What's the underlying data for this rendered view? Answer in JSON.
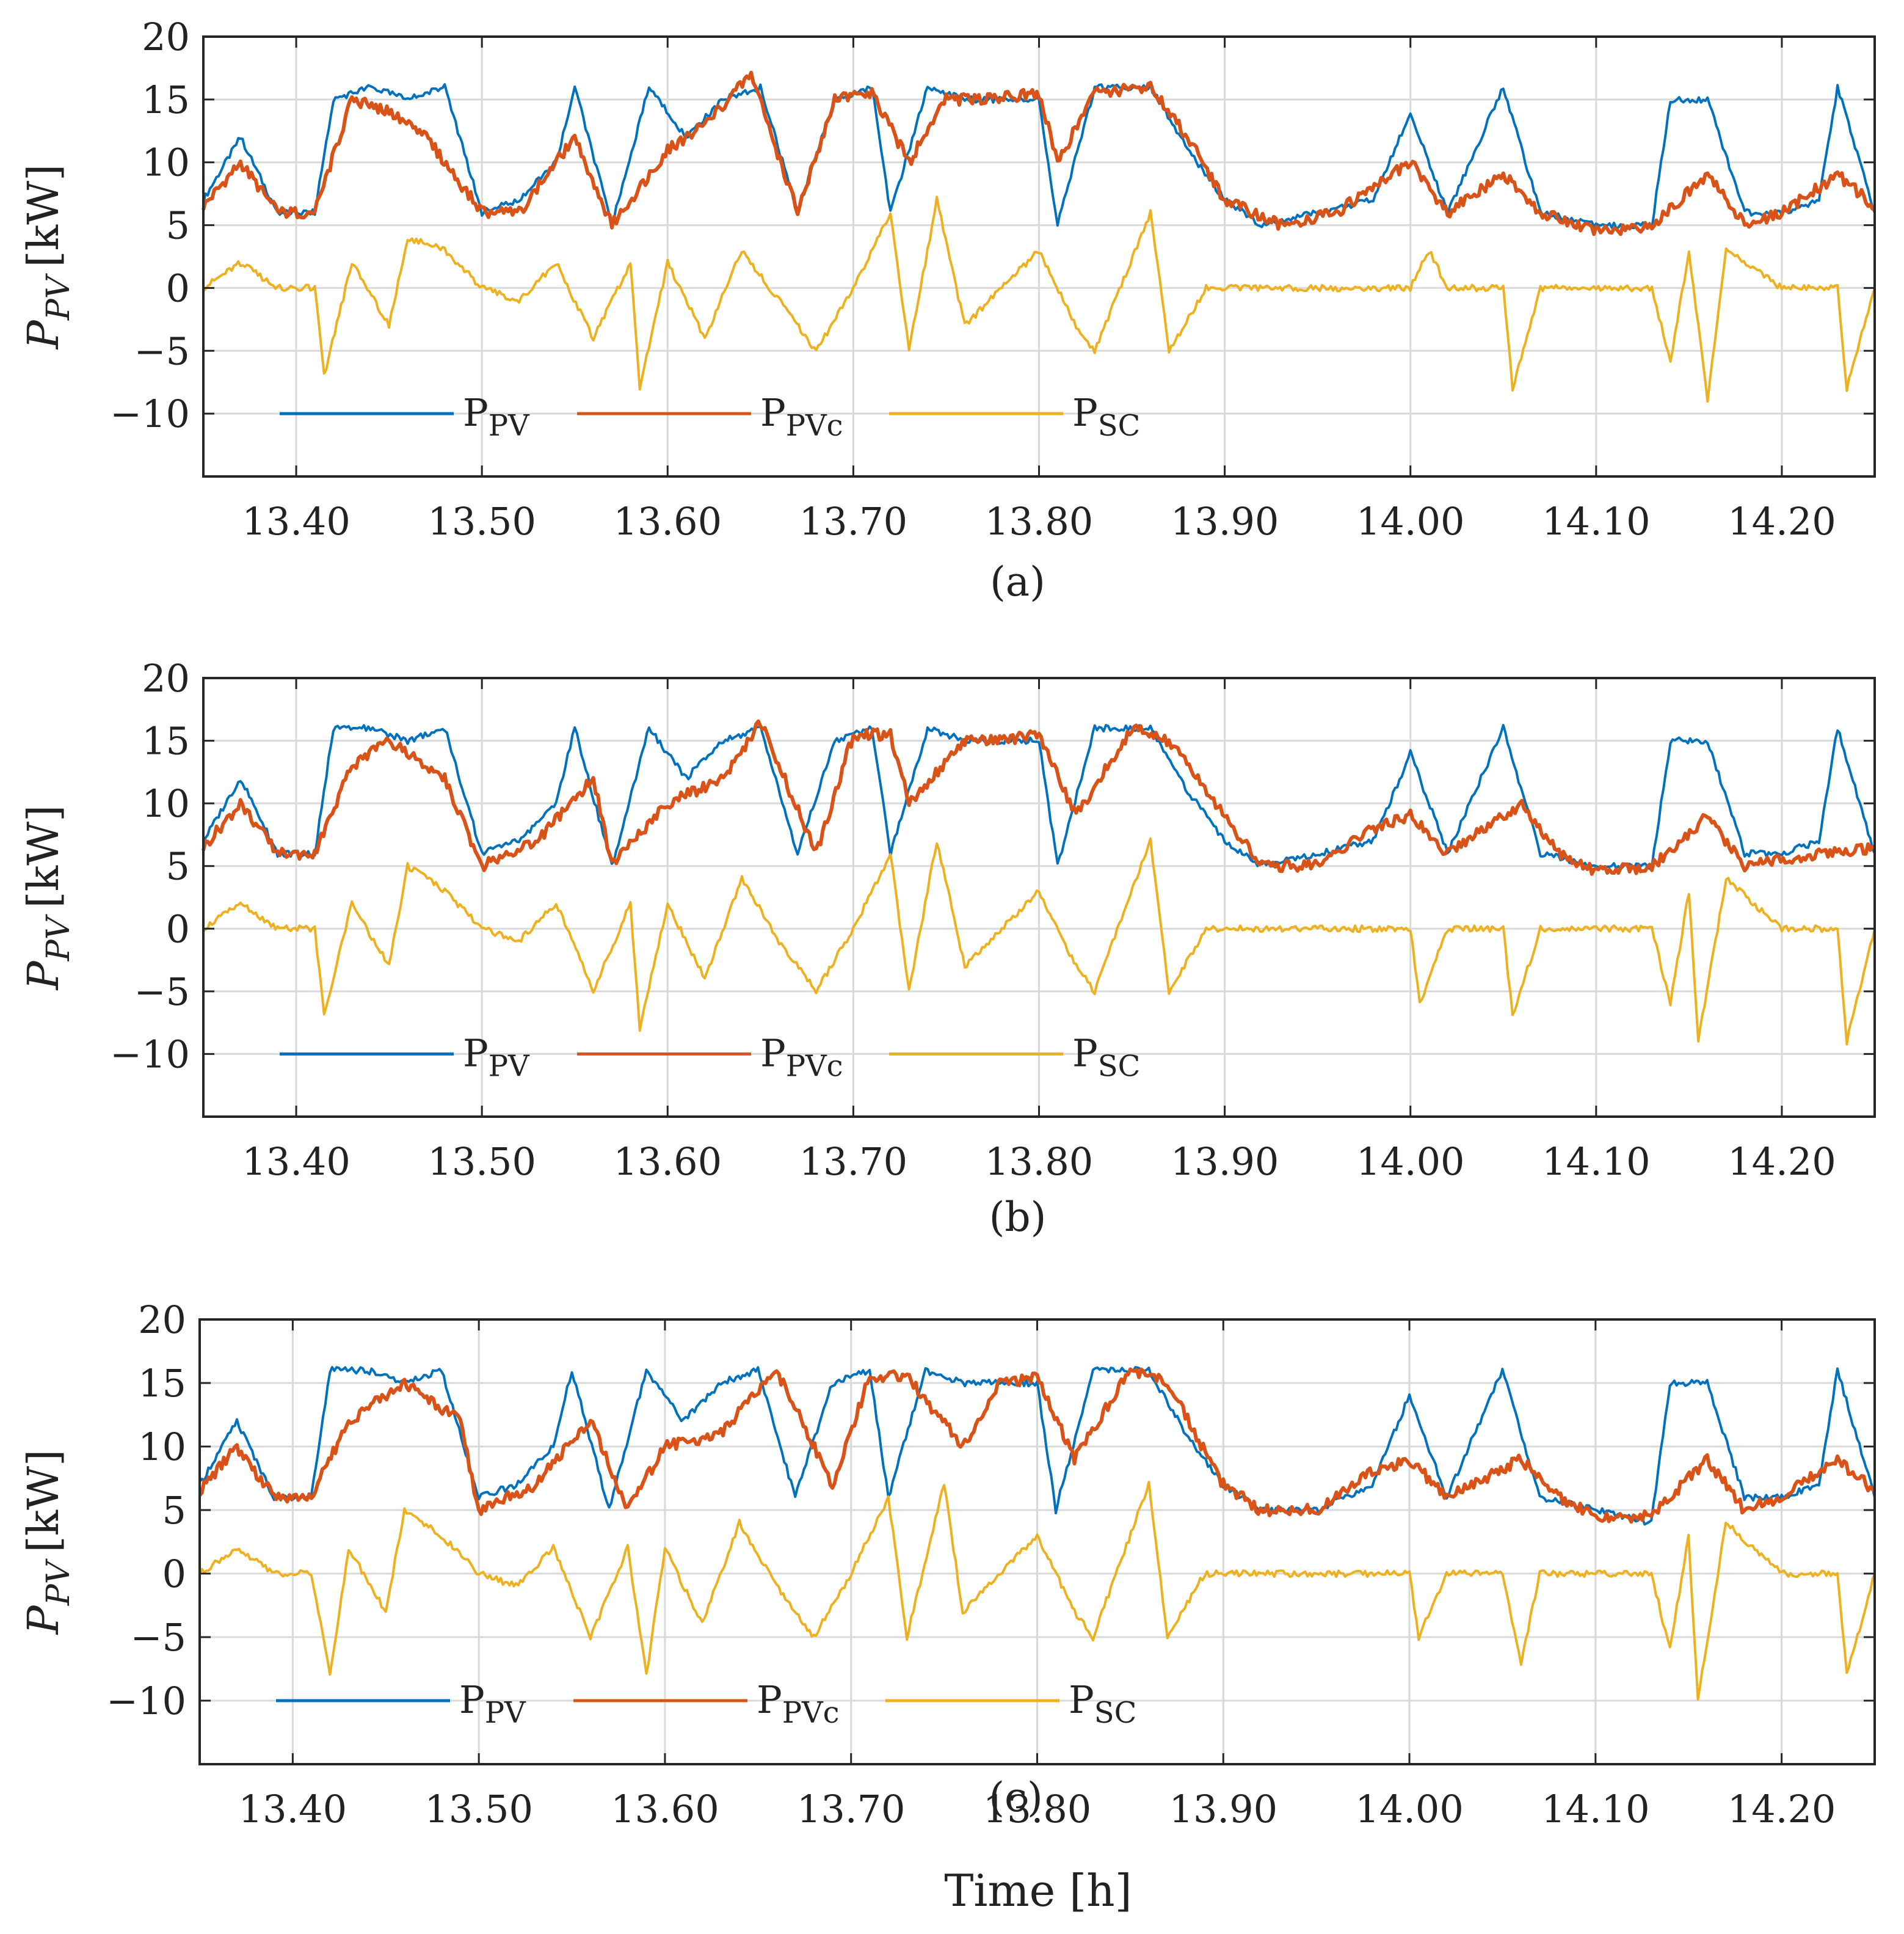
{
  "figure": {
    "xlabel": "Time [h]",
    "panel_captions": [
      "(a)",
      "(b)",
      "(c)"
    ]
  },
  "chart_data": [
    {
      "type": "line",
      "panel": "(a)",
      "ylabel": "P_PV [kW]",
      "ylabel_main": "P",
      "ylabel_sub": "PV",
      "ylabel_unit": "[kW]",
      "xlim": [
        13.35,
        14.25
      ],
      "ylim": [
        -15,
        20
      ],
      "xticks": [
        13.4,
        13.5,
        13.6,
        13.7,
        13.8,
        13.9,
        14.0,
        14.1,
        14.2
      ],
      "xtick_labels": [
        "13.40",
        "13.50",
        "13.60",
        "13.70",
        "13.80",
        "13.90",
        "14.00",
        "14.10",
        "14.20"
      ],
      "yticks": [
        20,
        15,
        10,
        5,
        0,
        -5,
        -10
      ],
      "ytick_labels": [
        "20",
        "15",
        "10",
        "5",
        "0",
        "−5",
        "−10"
      ],
      "grid": true,
      "legend_placement": "bottom-left, horizontal",
      "series": [
        {
          "name": "P_PV",
          "label_main": "P",
          "label_sub": "PV",
          "color": "#0072BD",
          "x": [
            13.35,
            13.37,
            13.39,
            13.41,
            13.42,
            13.44,
            13.46,
            13.48,
            13.5,
            13.52,
            13.54,
            13.55,
            13.57,
            13.59,
            13.61,
            13.63,
            13.65,
            13.67,
            13.69,
            13.71,
            13.72,
            13.74,
            13.76,
            13.78,
            13.8,
            13.81,
            13.83,
            13.86,
            13.88,
            13.9,
            13.92,
            13.95,
            13.98,
            14.0,
            14.02,
            14.05,
            14.07,
            14.1,
            14.13,
            14.14,
            14.16,
            14.18,
            14.2,
            14.22,
            14.23,
            14.25
          ],
          "y": [
            7,
            12,
            6,
            6,
            15,
            16,
            15,
            16,
            6,
            7,
            10,
            16,
            5,
            16,
            12,
            15,
            16,
            6,
            15,
            16,
            6,
            16,
            15,
            15,
            15,
            5,
            16,
            16,
            11,
            7,
            5,
            6,
            7,
            14,
            6,
            16,
            6,
            5,
            5,
            15,
            15,
            6,
            6,
            7,
            16,
            6
          ]
        },
        {
          "name": "P_PVc",
          "label_main": "P",
          "label_sub": "PVc",
          "color": "#D95319",
          "x": [
            13.35,
            13.37,
            13.39,
            13.41,
            13.43,
            13.45,
            13.47,
            13.5,
            13.52,
            13.55,
            13.57,
            13.6,
            13.62,
            13.645,
            13.67,
            13.69,
            13.71,
            13.73,
            13.75,
            13.77,
            13.8,
            13.81,
            13.83,
            13.86,
            13.88,
            13.9,
            13.93,
            13.96,
            14.0,
            14.02,
            14.05,
            14.07,
            14.1,
            14.13,
            14.16,
            14.18,
            14.2,
            14.23,
            14.25
          ],
          "y": [
            6.5,
            10,
            6,
            6,
            15,
            14,
            12,
            6,
            6,
            12,
            5,
            11,
            13,
            17,
            6,
            15,
            15.5,
            10,
            15,
            15,
            15.5,
            10,
            15.5,
            16,
            12,
            7,
            5,
            6,
            10,
            6,
            9,
            6,
            4.5,
            5,
            9,
            5,
            6,
            9,
            6.5
          ]
        },
        {
          "name": "P_SC",
          "label_main": "P",
          "label_sub": "SC",
          "color": "#EDB120",
          "x": [
            13.35,
            13.37,
            13.39,
            13.41,
            13.415,
            13.43,
            13.45,
            13.46,
            13.48,
            13.5,
            13.52,
            13.54,
            13.56,
            13.58,
            13.585,
            13.6,
            13.62,
            13.64,
            13.66,
            13.68,
            13.7,
            13.72,
            13.73,
            13.745,
            13.76,
            13.78,
            13.8,
            13.82,
            13.83,
            13.86,
            13.87,
            13.89,
            13.9,
            13.95,
            14.0,
            14.01,
            14.02,
            14.05,
            14.055,
            14.07,
            14.13,
            14.14,
            14.15,
            14.16,
            14.17,
            14.2,
            14.23,
            14.235,
            14.25
          ],
          "y": [
            0,
            2,
            0,
            0,
            -7,
            2,
            -3,
            4,
            3,
            0,
            -1,
            2,
            -4,
            2,
            -8,
            2,
            -4,
            3,
            -1,
            -5,
            0,
            6,
            -5,
            7,
            -3,
            0,
            3,
            -3,
            -5,
            6,
            -5,
            0,
            0,
            0,
            0,
            3,
            0,
            0,
            -8,
            0,
            0,
            -6,
            3,
            -9,
            3,
            0,
            0,
            -8,
            0
          ]
        }
      ]
    },
    {
      "type": "line",
      "panel": "(b)",
      "ylabel": "P_PV [kW]",
      "ylabel_main": "P",
      "ylabel_sub": "PV",
      "ylabel_unit": "[kW]",
      "xlim": [
        13.35,
        14.25
      ],
      "ylim": [
        -15,
        20
      ],
      "xticks": [
        13.4,
        13.5,
        13.6,
        13.7,
        13.8,
        13.9,
        14.0,
        14.1,
        14.2
      ],
      "xtick_labels": [
        "13.40",
        "13.50",
        "13.60",
        "13.70",
        "13.80",
        "13.90",
        "14.00",
        "14.10",
        "14.20"
      ],
      "yticks": [
        20,
        15,
        10,
        5,
        0,
        -5,
        -10
      ],
      "ytick_labels": [
        "20",
        "15",
        "10",
        "5",
        "0",
        "−5",
        "−10"
      ],
      "grid": true,
      "legend_placement": "bottom-left, horizontal",
      "series": [
        {
          "name": "P_PV",
          "label_main": "P",
          "label_sub": "PV",
          "color": "#0072BD",
          "x": [
            13.35,
            13.37,
            13.39,
            13.41,
            13.42,
            13.44,
            13.46,
            13.48,
            13.5,
            13.52,
            13.54,
            13.55,
            13.57,
            13.59,
            13.61,
            13.63,
            13.65,
            13.67,
            13.69,
            13.71,
            13.72,
            13.74,
            13.76,
            13.78,
            13.8,
            13.81,
            13.83,
            13.86,
            13.88,
            13.9,
            13.92,
            13.95,
            13.98,
            14.0,
            14.02,
            14.05,
            14.07,
            14.1,
            14.13,
            14.14,
            14.16,
            14.18,
            14.2,
            14.22,
            14.23,
            14.25
          ],
          "y": [
            7,
            12,
            6,
            6,
            16,
            16,
            15,
            16,
            6,
            7,
            10,
            16,
            5,
            16,
            12,
            15,
            16,
            6,
            15,
            16,
            6,
            16,
            15,
            15,
            15,
            5,
            16,
            16,
            11,
            7,
            5,
            6,
            7,
            14,
            6,
            16,
            6,
            5,
            5,
            15,
            15,
            6,
            6,
            7,
            16,
            6
          ]
        },
        {
          "name": "P_PVc",
          "label_main": "P",
          "label_sub": "PVc",
          "color": "#D95319",
          "x": [
            13.35,
            13.37,
            13.39,
            13.41,
            13.43,
            13.45,
            13.48,
            13.5,
            13.53,
            13.56,
            13.57,
            13.6,
            13.63,
            13.65,
            13.68,
            13.7,
            13.72,
            13.73,
            13.76,
            13.78,
            13.8,
            13.82,
            13.85,
            13.87,
            13.9,
            13.92,
            13.95,
            13.98,
            14.0,
            14.02,
            14.06,
            14.08,
            14.1,
            14.13,
            14.16,
            14.18,
            14.22,
            14.25
          ],
          "y": [
            6.5,
            10,
            6,
            6,
            13,
            15,
            12,
            5,
            7,
            12,
            5,
            10,
            12,
            16.5,
            6,
            15.5,
            15.5,
            10,
            15,
            15,
            15.5,
            9,
            16,
            15,
            9,
            5,
            5,
            8,
            9,
            6,
            10,
            6,
            4.5,
            5,
            9,
            5,
            6,
            6.5
          ]
        },
        {
          "name": "P_SC",
          "label_main": "P",
          "label_sub": "SC",
          "color": "#EDB120",
          "x": [
            13.35,
            13.37,
            13.39,
            13.41,
            13.415,
            13.43,
            13.45,
            13.46,
            13.48,
            13.5,
            13.52,
            13.54,
            13.56,
            13.58,
            13.585,
            13.6,
            13.62,
            13.64,
            13.66,
            13.68,
            13.7,
            13.72,
            13.73,
            13.745,
            13.76,
            13.78,
            13.8,
            13.82,
            13.83,
            13.86,
            13.87,
            13.89,
            13.9,
            13.95,
            14.0,
            14.005,
            14.02,
            14.05,
            14.055,
            14.07,
            14.13,
            14.14,
            14.15,
            14.155,
            14.17,
            14.2,
            14.23,
            14.235,
            14.25
          ],
          "y": [
            0,
            2,
            0,
            0,
            -7,
            2,
            -3,
            5,
            3,
            0,
            -1,
            2,
            -5,
            2,
            -8,
            2,
            -4,
            4,
            -1,
            -5,
            0,
            6,
            -5,
            7,
            -3,
            0,
            3,
            -3,
            -5,
            7,
            -5,
            0,
            0,
            0,
            0,
            -6,
            0,
            0,
            -7,
            0,
            0,
            -6,
            3,
            -9,
            4,
            0,
            0,
            -9,
            0
          ]
        }
      ]
    },
    {
      "type": "line",
      "panel": "(c)",
      "ylabel": "P_PV [kW]",
      "ylabel_main": "P",
      "ylabel_sub": "PV",
      "ylabel_unit": "[kW]",
      "xlim": [
        13.35,
        14.25
      ],
      "ylim": [
        -15,
        20
      ],
      "xticks": [
        13.4,
        13.5,
        13.6,
        13.7,
        13.8,
        13.9,
        14.0,
        14.1,
        14.2
      ],
      "xtick_labels": [
        "13.40",
        "13.50",
        "13.60",
        "13.70",
        "13.80",
        "13.90",
        "14.00",
        "14.10",
        "14.20"
      ],
      "yticks": [
        20,
        15,
        10,
        5,
        0,
        -5,
        -10
      ],
      "ytick_labels": [
        "20",
        "15",
        "10",
        "5",
        "0",
        "−5",
        "−10"
      ],
      "grid": true,
      "legend_placement": "bottom-left, horizontal",
      "series": [
        {
          "name": "P_PV",
          "label_main": "P",
          "label_sub": "PV",
          "color": "#0072BD",
          "x": [
            13.35,
            13.37,
            13.39,
            13.41,
            13.42,
            13.44,
            13.46,
            13.48,
            13.5,
            13.52,
            13.54,
            13.55,
            13.57,
            13.59,
            13.61,
            13.63,
            13.65,
            13.67,
            13.69,
            13.71,
            13.72,
            13.74,
            13.76,
            13.78,
            13.8,
            13.81,
            13.83,
            13.86,
            13.88,
            13.9,
            13.92,
            13.95,
            13.98,
            14.0,
            14.02,
            14.05,
            14.07,
            14.1,
            14.13,
            14.14,
            14.16,
            14.18,
            14.2,
            14.22,
            14.23,
            14.25
          ],
          "y": [
            7,
            12,
            6,
            6,
            16,
            16,
            15,
            16,
            6,
            7,
            10,
            16,
            5,
            16,
            12,
            15,
            16,
            6,
            15,
            16,
            6,
            16,
            15,
            15,
            15,
            5,
            16,
            16,
            11,
            7,
            5,
            5,
            7,
            14,
            6,
            16,
            6,
            5,
            4,
            15,
            15,
            6,
            6,
            7,
            16,
            6
          ]
        },
        {
          "name": "P_PVc",
          "label_main": "P",
          "label_sub": "PVc",
          "color": "#D95319",
          "x": [
            13.35,
            13.37,
            13.39,
            13.41,
            13.43,
            13.46,
            13.49,
            13.5,
            13.53,
            13.56,
            13.58,
            13.6,
            13.63,
            13.66,
            13.69,
            13.71,
            13.73,
            13.76,
            13.78,
            13.8,
            13.82,
            13.85,
            13.87,
            13.9,
            13.92,
            13.95,
            13.98,
            14.0,
            14.02,
            14.06,
            14.08,
            14.1,
            14.13,
            14.16,
            14.18,
            14.2,
            14.23,
            14.25
          ],
          "y": [
            6.5,
            10,
            6,
            6,
            12,
            15,
            12,
            5,
            7,
            12,
            5,
            10,
            11,
            16,
            7,
            15.5,
            15.5,
            10,
            15,
            15.5,
            9,
            16,
            15,
            7,
            5,
            5,
            8,
            9,
            6,
            9,
            6,
            4.5,
            4.5,
            9,
            5,
            6,
            9,
            6.5
          ]
        },
        {
          "name": "P_SC",
          "label_main": "P",
          "label_sub": "SC",
          "color": "#EDB120",
          "x": [
            13.35,
            13.37,
            13.39,
            13.41,
            13.42,
            13.43,
            13.45,
            13.46,
            13.48,
            13.5,
            13.52,
            13.54,
            13.56,
            13.58,
            13.59,
            13.6,
            13.62,
            13.64,
            13.66,
            13.68,
            13.7,
            13.72,
            13.73,
            13.75,
            13.76,
            13.78,
            13.8,
            13.82,
            13.83,
            13.86,
            13.87,
            13.89,
            13.9,
            13.95,
            14.0,
            14.005,
            14.02,
            14.05,
            14.06,
            14.07,
            14.13,
            14.14,
            14.15,
            14.155,
            14.17,
            14.2,
            14.23,
            14.235,
            14.25
          ],
          "y": [
            0,
            2,
            0,
            0,
            -8,
            2,
            -3,
            5,
            3,
            0,
            -1,
            2,
            -5,
            2,
            -8,
            2,
            -4,
            4,
            -1,
            -5,
            0,
            6,
            -5,
            7,
            -3,
            0,
            3,
            -3,
            -5,
            7,
            -5,
            0,
            0,
            0,
            0,
            -5,
            0,
            0,
            -7,
            0,
            0,
            -6,
            3,
            -10,
            4,
            0,
            0,
            -8,
            0
          ]
        }
      ]
    }
  ]
}
